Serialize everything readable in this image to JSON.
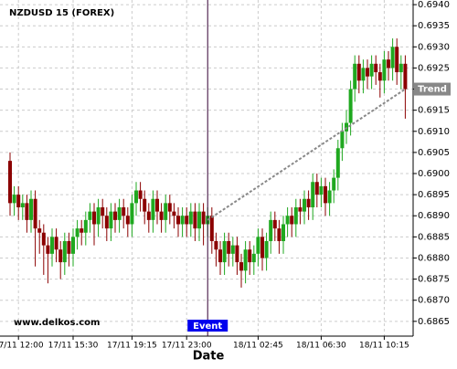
{
  "chart_data": {
    "type": "candlestick",
    "title": "NZDUSD 15 (FOREX)",
    "xlabel": "Date",
    "watermark": "www.delkos.com",
    "up_color": "#1fa81f",
    "down_color": "#8b0000",
    "grid": true,
    "event": {
      "label": "Event",
      "color": "#0000ee"
    },
    "trend": {
      "label": "Trend",
      "values": [
        0.6889,
        0.692
      ],
      "color": "#888888"
    },
    "ylim": [
      0.68615,
      0.69411
    ],
    "yticks": [
      0.6865,
      {
        "value": 0.687,
        "label": "0.6870"
      },
      0.6875,
      {
        "value": 0.688,
        "label": "0.6880"
      },
      0.6885,
      {
        "value": 0.689,
        "label": "0.6890"
      },
      0.6895,
      {
        "value": 0.69,
        "label": "0.6900"
      },
      0.6905,
      {
        "value": 0.691,
        "label": "0.6910"
      },
      0.6915,
      {
        "value": 0.692,
        "label": "0.6920"
      },
      0.6925,
      {
        "value": 0.693,
        "label": "0.6930"
      },
      0.6935,
      {
        "value": 0.694,
        "label": "0.6940"
      }
    ],
    "categories": [
      null,
      null,
      "17/11 12:00",
      null,
      null,
      null,
      null,
      null,
      null,
      null,
      null,
      null,
      null,
      null,
      null,
      "17/11 15:30",
      null,
      null,
      null,
      null,
      null,
      null,
      null,
      null,
      null,
      null,
      null,
      null,
      null,
      "17/11 19:15",
      null,
      null,
      null,
      null,
      null,
      null,
      null,
      null,
      null,
      null,
      null,
      null,
      "17/11 23:00",
      null,
      null,
      null,
      null,
      null,
      null,
      null,
      null,
      null,
      null,
      null,
      null,
      null,
      null,
      null,
      null,
      "18/11 02:45",
      null,
      null,
      null,
      null,
      null,
      null,
      null,
      null,
      null,
      null,
      null,
      null,
      null,
      null,
      "18/11 06:30",
      null,
      null,
      null,
      null,
      null,
      null,
      null,
      null,
      null,
      null,
      null,
      null,
      null,
      null,
      "18/11 10:15",
      null,
      null,
      null,
      null,
      null
    ],
    "open": [
      0.6903,
      0.6893,
      0.6895,
      0.6892,
      0.6893,
      0.6889,
      0.6894,
      0.6887,
      0.6886,
      0.6883,
      0.6881,
      0.6885,
      0.6882,
      0.6879,
      0.6884,
      0.6881,
      0.6885,
      0.6887,
      0.6886,
      0.6889,
      0.6891,
      0.6888,
      0.6892,
      0.689,
      0.6887,
      0.6891,
      0.6889,
      0.6892,
      0.689,
      0.6888,
      0.6893,
      0.6896,
      0.6894,
      0.6891,
      0.6889,
      0.6894,
      0.6891,
      0.6889,
      0.6893,
      0.6891,
      0.689,
      0.6888,
      0.689,
      0.6888,
      0.6891,
      0.6887,
      0.6891,
      0.6888,
      0.689,
      0.6884,
      0.6882,
      0.6879,
      0.6884,
      0.6881,
      0.6883,
      0.6879,
      0.6877,
      0.6882,
      0.6879,
      0.6881,
      0.6885,
      0.688,
      0.6884,
      0.6889,
      0.6887,
      0.6884,
      0.6888,
      0.689,
      0.6888,
      0.6892,
      0.6891,
      0.6894,
      0.6892,
      0.6898,
      0.6895,
      0.6897,
      0.6893,
      0.6896,
      0.6899,
      0.6906,
      0.691,
      0.6912,
      0.692,
      0.6926,
      0.6922,
      0.6925,
      0.6923,
      0.6926,
      0.6924,
      0.6922,
      0.6927,
      0.6925,
      0.693,
      0.6924,
      0.6926
    ],
    "high": [
      0.6905,
      0.6897,
      0.6897,
      0.6895,
      0.6895,
      0.6896,
      0.6896,
      0.6889,
      0.6888,
      0.6885,
      0.6887,
      0.6887,
      0.6884,
      0.6886,
      0.6886,
      0.6887,
      0.6889,
      0.6889,
      0.6891,
      0.6893,
      0.6893,
      0.6894,
      0.6894,
      0.6892,
      0.6893,
      0.6893,
      0.6894,
      0.6894,
      0.6892,
      0.6895,
      0.6898,
      0.6898,
      0.6896,
      0.6893,
      0.6896,
      0.6896,
      0.6893,
      0.6895,
      0.6895,
      0.6893,
      0.6892,
      0.6892,
      0.6892,
      0.6893,
      0.6893,
      0.6893,
      0.6893,
      0.6892,
      0.6892,
      0.6886,
      0.6884,
      0.6886,
      0.6886,
      0.6885,
      0.6885,
      0.6881,
      0.6884,
      0.6884,
      0.6883,
      0.6887,
      0.6887,
      0.6886,
      0.6891,
      0.6891,
      0.6889,
      0.689,
      0.6892,
      0.6892,
      0.6894,
      0.6894,
      0.6896,
      0.6896,
      0.69,
      0.69,
      0.6899,
      0.6899,
      0.6898,
      0.6901,
      0.6908,
      0.6912,
      0.6915,
      0.6922,
      0.6928,
      0.6928,
      0.6927,
      0.6927,
      0.6928,
      0.6928,
      0.6926,
      0.6929,
      0.6929,
      0.6932,
      0.6932,
      0.6928,
      0.6928
    ],
    "low": [
      0.689,
      0.689,
      0.6889,
      0.6889,
      0.6886,
      0.6886,
      0.6878,
      0.6881,
      0.6876,
      0.6874,
      0.6878,
      0.6879,
      0.6875,
      0.6876,
      0.6878,
      0.6878,
      0.6882,
      0.6883,
      0.6883,
      0.6886,
      0.6883,
      0.6885,
      0.6887,
      0.6884,
      0.6884,
      0.6886,
      0.6886,
      0.6887,
      0.6885,
      0.6885,
      0.689,
      0.6891,
      0.6888,
      0.6886,
      0.6886,
      0.6888,
      0.6886,
      0.6886,
      0.6888,
      0.6887,
      0.6885,
      0.6885,
      0.6885,
      0.6885,
      0.6884,
      0.6884,
      0.6883,
      0.6885,
      0.6881,
      0.6878,
      0.6876,
      0.6876,
      0.6878,
      0.6878,
      0.6876,
      0.6873,
      0.6874,
      0.6876,
      0.6876,
      0.6878,
      0.6877,
      0.6877,
      0.6881,
      0.6884,
      0.6881,
      0.6881,
      0.6885,
      0.6885,
      0.6885,
      0.6888,
      0.6888,
      0.6889,
      0.6889,
      0.6892,
      0.6892,
      0.689,
      0.689,
      0.6893,
      0.6896,
      0.6903,
      0.6907,
      0.6909,
      0.6917,
      0.6919,
      0.6919,
      0.692,
      0.692,
      0.6921,
      0.6918,
      0.6919,
      0.6922,
      0.6922,
      0.6921,
      0.692,
      0.6913
    ],
    "close": [
      0.6893,
      0.6895,
      0.6892,
      0.6893,
      0.6889,
      0.6894,
      0.6887,
      0.6886,
      0.6883,
      0.6881,
      0.6885,
      0.6882,
      0.6879,
      0.6884,
      0.6881,
      0.6885,
      0.6887,
      0.6886,
      0.6889,
      0.6891,
      0.6888,
      0.6892,
      0.689,
      0.6887,
      0.6891,
      0.6889,
      0.6892,
      0.689,
      0.6888,
      0.6893,
      0.6896,
      0.6894,
      0.6891,
      0.6889,
      0.6894,
      0.6891,
      0.6889,
      0.6893,
      0.6891,
      0.689,
      0.6888,
      0.689,
      0.6888,
      0.6891,
      0.6887,
      0.6891,
      0.6888,
      0.689,
      0.6884,
      0.6882,
      0.6879,
      0.6884,
      0.6881,
      0.6883,
      0.6879,
      0.6877,
      0.6882,
      0.6879,
      0.6881,
      0.6885,
      0.688,
      0.6884,
      0.6889,
      0.6887,
      0.6884,
      0.6888,
      0.689,
      0.6888,
      0.6892,
      0.6891,
      0.6894,
      0.6892,
      0.6898,
      0.6895,
      0.6897,
      0.6893,
      0.6896,
      0.6899,
      0.6906,
      0.691,
      0.6912,
      0.692,
      0.6926,
      0.6922,
      0.6925,
      0.6923,
      0.6926,
      0.6924,
      0.6922,
      0.6927,
      0.6925,
      0.693,
      0.6924,
      0.6926,
      0.692
    ]
  }
}
